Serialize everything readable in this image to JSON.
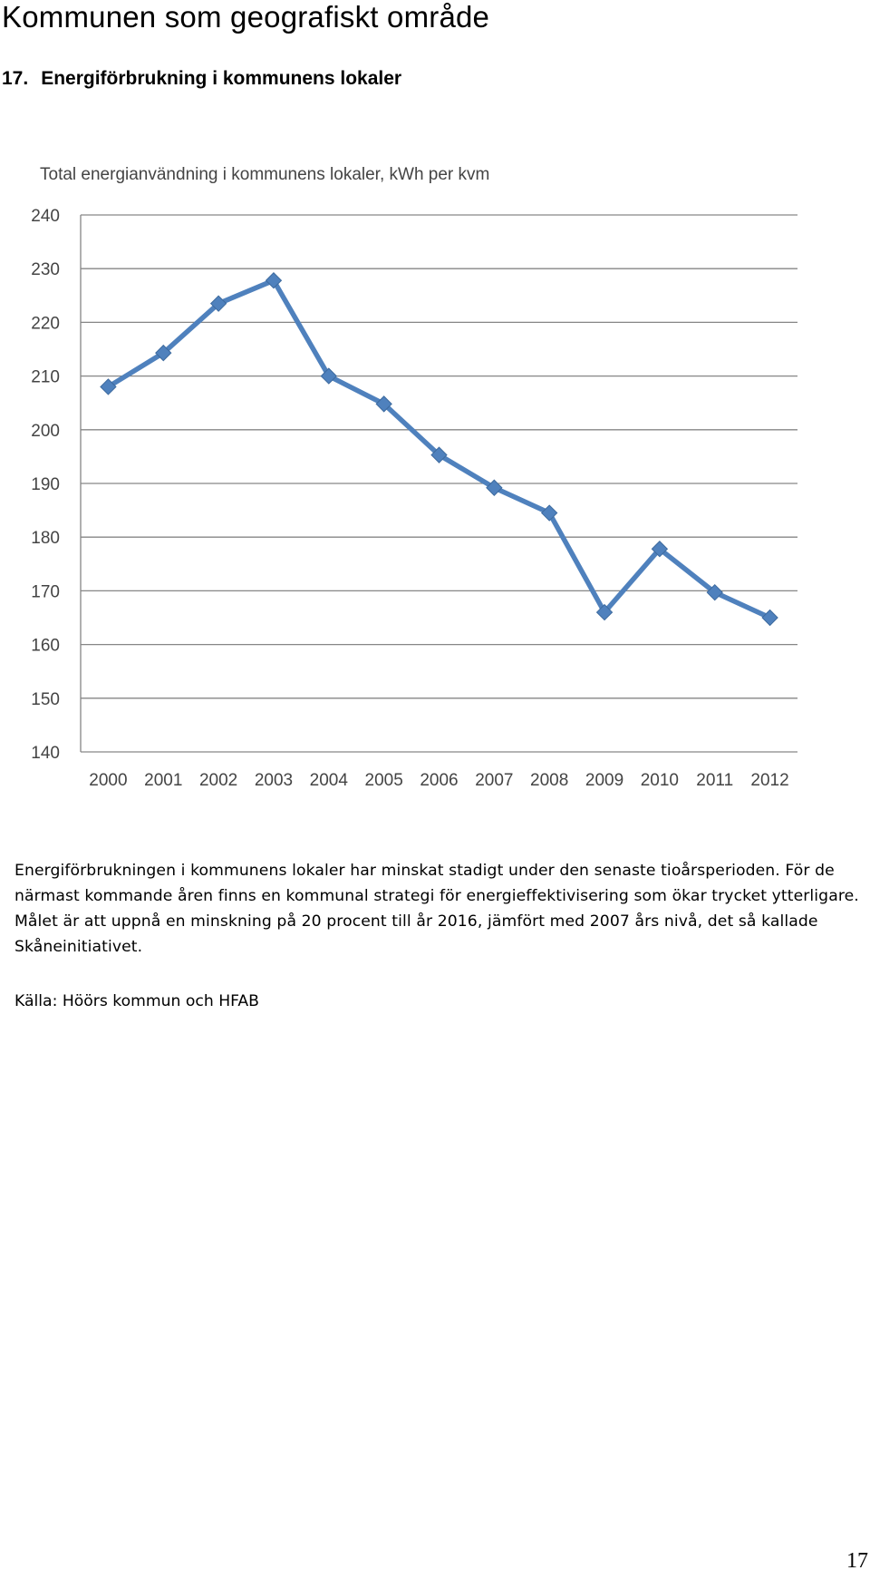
{
  "page": {
    "title": "Kommunen som geografiskt område",
    "section_number": "17.",
    "section_title": "Energiförbrukning i kommunens lokaler",
    "body": "Energiförbrukningen i kommunens lokaler har minskat stadigt under den senaste tioårsperioden. För de närmast kommande åren finns en kommunal strategi för energieffektivisering som ökar trycket ytterligare. Målet är att uppnå en minskning på 20 procent till år 2016, jämfört med 2007 års nivå, det så kallade Skåneinitiativet.",
    "source": "Källa: Höörs kommun och HFAB",
    "page_number": "17"
  },
  "chart_data": {
    "type": "line",
    "title": "Total energianvändning i kommunens lokaler, kWh per kvm",
    "xlabel": "",
    "ylabel": "",
    "categories": [
      "2000",
      "2001",
      "2002",
      "2003",
      "2004",
      "2005",
      "2006",
      "2007",
      "2008",
      "2009",
      "2010",
      "2011",
      "2012"
    ],
    "series": [
      {
        "values": [
          208,
          214.3,
          223.5,
          227.8,
          210,
          204.8,
          195.3,
          189.2,
          184.5,
          166,
          177.8,
          169.7,
          165
        ]
      }
    ],
    "ylim": [
      140,
      240
    ],
    "yticks": [
      "140",
      "150",
      "160",
      "170",
      "180",
      "190",
      "200",
      "210",
      "220",
      "230",
      "240"
    ],
    "grid": true,
    "legend": "none",
    "line_color": "#4f81bd",
    "grid_color": "#868686",
    "marker": "diamond"
  }
}
